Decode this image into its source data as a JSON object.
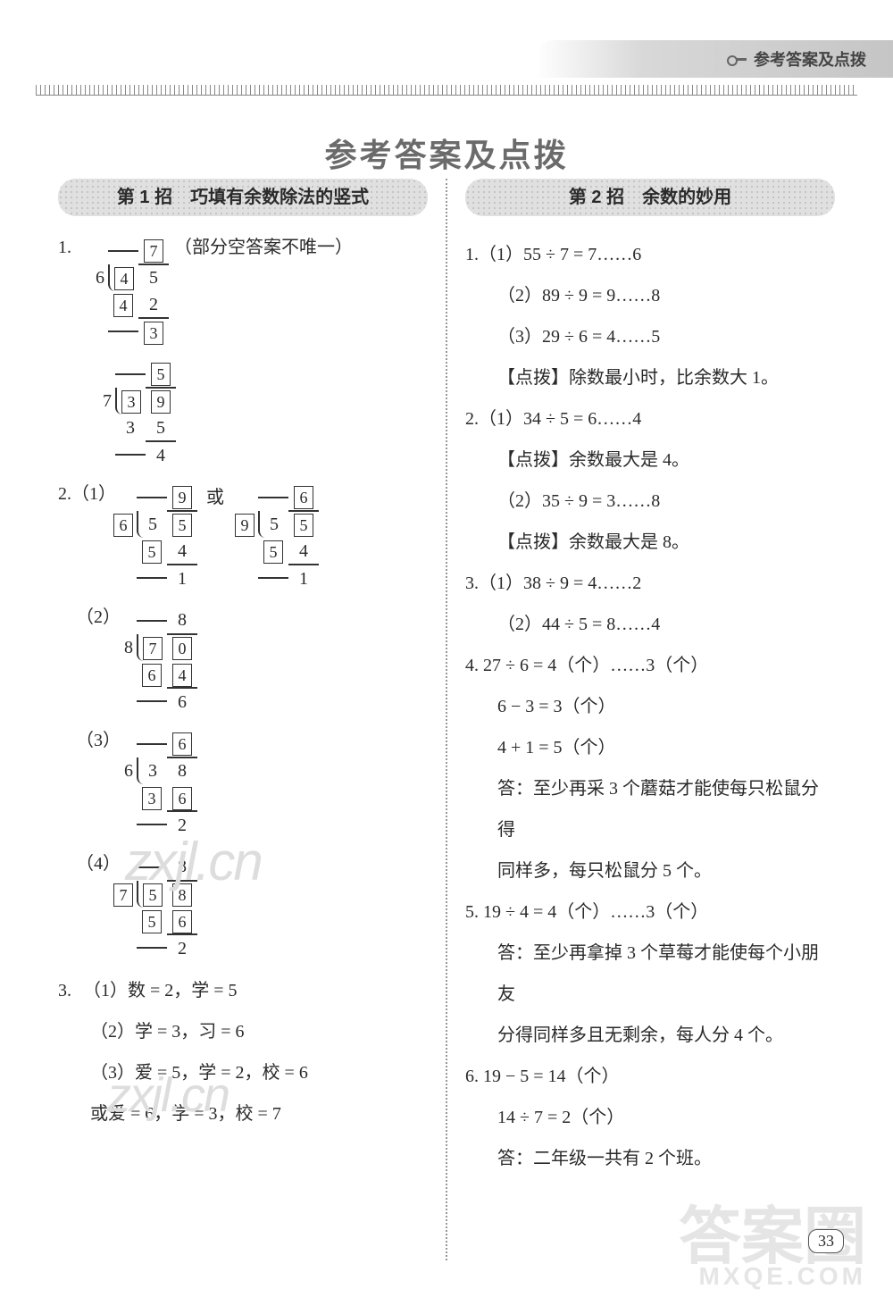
{
  "header": {
    "tab": "参考答案及点拨"
  },
  "title": "参考答案及点拨",
  "page_number": "33",
  "watermarks": {
    "w1": "zxjl.cn",
    "w2": "zxjl.cn",
    "big_top": "答案圈",
    "big_sub": "MXQE.COM"
  },
  "left": {
    "section": "第 1 招　巧填有余数除法的竖式",
    "q1_note": "（部分空答案不唯一）",
    "q1a": {
      "quotient": [
        "",
        "7"
      ],
      "divisor": "6",
      "dividend": [
        "4",
        "5"
      ],
      "sub": [
        "4",
        "2"
      ],
      "remainder": [
        "",
        "3"
      ],
      "boxes": {
        "q1": true,
        "d0": true,
        "s0": true,
        "r1": true
      }
    },
    "q1b": {
      "quotient": [
        "",
        "5"
      ],
      "divisor": "7",
      "dividend": [
        "3",
        "9"
      ],
      "sub": [
        "3",
        "5"
      ],
      "remainder": [
        "",
        "4"
      ],
      "boxes": {
        "q1": true,
        "d0": true,
        "d1": true
      }
    },
    "q2_1a": {
      "quotient": [
        "",
        "9"
      ],
      "divisor": "6",
      "dividend": [
        "5",
        "5"
      ],
      "sub": [
        "5",
        "4"
      ],
      "remainder": [
        "",
        "1"
      ],
      "boxes": {
        "q1": true,
        "dv": true,
        "d1": true,
        "s0": true
      }
    },
    "q2_1_or": "或",
    "q2_1b": {
      "quotient": [
        "",
        "6"
      ],
      "divisor": "9",
      "dividend": [
        "5",
        "5"
      ],
      "sub": [
        "5",
        "4"
      ],
      "remainder": [
        "",
        "1"
      ],
      "boxes": {
        "q1": true,
        "dv": true,
        "d1": true,
        "s0": true
      }
    },
    "q2_2": {
      "quotient": [
        "",
        "8"
      ],
      "divisor": "8",
      "dividend": [
        "7",
        "0"
      ],
      "sub": [
        "6",
        "4"
      ],
      "remainder": [
        "",
        "6"
      ],
      "boxes": {
        "d0": true,
        "d1": true,
        "s0": true,
        "s1": true
      }
    },
    "q2_3": {
      "quotient": [
        "",
        "6"
      ],
      "divisor": "6",
      "dividend": [
        "3",
        "8"
      ],
      "sub": [
        "3",
        "6"
      ],
      "remainder": [
        "",
        "2"
      ],
      "boxes": {
        "q1": true,
        "s0": true,
        "s1": true
      }
    },
    "q2_4": {
      "quotient": [
        "",
        "8"
      ],
      "divisor": "7",
      "dividend": [
        "5",
        "8"
      ],
      "sub": [
        "5",
        "6"
      ],
      "remainder": [
        "",
        "2"
      ],
      "boxes": {
        "dv": true,
        "d0": true,
        "d1": true,
        "s0": true,
        "s1": true
      }
    },
    "q3_1": "（1）数 = 2，学 = 5",
    "q3_2": "（2）学 = 3，习 = 6",
    "q3_3": "（3）爱 = 5，学 = 2，校 = 6",
    "q3_3b": "或爱 = 6，学 = 3，校 = 7"
  },
  "right": {
    "section": "第 2 招　余数的妙用",
    "lines": [
      "1.（1）55 ÷ 7 = 7……6",
      "（2）89 ÷ 9 = 9……8",
      "（3）29 ÷ 6 = 4……5",
      "【点拨】除数最小时，比余数大 1。",
      "2.（1）34 ÷ 5 = 6……4",
      "【点拨】余数最大是 4。",
      "（2）35 ÷ 9 = 3……8",
      "【点拨】余数最大是 8。",
      "3.（1）38 ÷ 9 = 4……2",
      "（2）44 ÷ 5 = 8……4",
      "4. 27 ÷ 6 = 4（个）……3（个）",
      "6 − 3 = 3（个）",
      "4 + 1 = 5（个）",
      "答：至少再采 3 个蘑菇才能使每只松鼠分得",
      "同样多，每只松鼠分 5 个。",
      "5. 19 ÷ 4 = 4（个）……3（个）",
      "答：至少再拿掉 3 个草莓才能使每个小朋友",
      "分得同样多且无剩余，每人分 4 个。",
      "6. 19 − 5 = 14（个）",
      "14 ÷ 7 = 2（个）",
      "答：二年级一共有 2 个班。"
    ],
    "indents": [
      0,
      1,
      1,
      1,
      0,
      1,
      1,
      1,
      0,
      1,
      0,
      1,
      1,
      1,
      1,
      0,
      1,
      1,
      0,
      1,
      1
    ]
  }
}
